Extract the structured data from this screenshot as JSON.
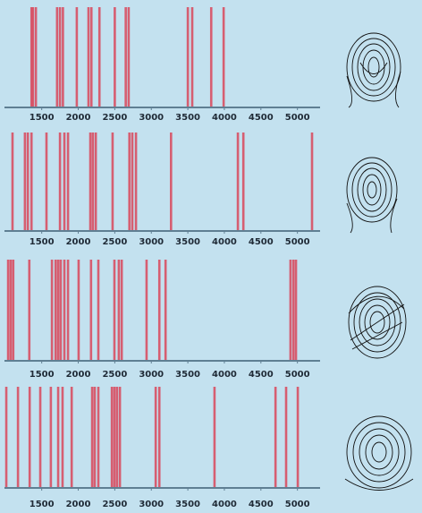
{
  "chart_data": [
    {
      "type": "barcode",
      "color": "#d9475b",
      "xlim": [
        990,
        5310
      ],
      "xticks": [
        1500,
        2000,
        2500,
        3000,
        3500,
        4000,
        4500,
        5000
      ],
      "x": [
        1360,
        1380,
        1420,
        1710,
        1750,
        1790,
        1980,
        2140,
        2180,
        2290,
        2500,
        2650,
        2690,
        3500,
        3560,
        3820,
        3990
      ]
    },
    {
      "type": "barcode",
      "color": "#d9475b",
      "xlim": [
        990,
        5310
      ],
      "xticks": [
        1500,
        2000,
        2500,
        3000,
        3500,
        4000,
        4500,
        5000
      ],
      "x": [
        1100,
        1270,
        1310,
        1360,
        1565,
        1750,
        1810,
        1860,
        2165,
        2200,
        2240,
        2470,
        2700,
        2740,
        2790,
        3270,
        4185,
        4260,
        5200
      ]
    },
    {
      "type": "barcode",
      "color": "#d9475b",
      "xlim": [
        990,
        5310
      ],
      "xticks": [
        1500,
        2000,
        2500,
        3000,
        3500,
        4000,
        4500,
        5000
      ],
      "x": [
        1040,
        1075,
        1110,
        1330,
        1640,
        1690,
        1725,
        1760,
        1810,
        1860,
        2005,
        2175,
        2275,
        2495,
        2555,
        2595,
        2935,
        3110,
        3195,
        4905,
        4945,
        4980
      ]
    },
    {
      "type": "barcode",
      "color": "#d9475b",
      "xlim": [
        990,
        5310
      ],
      "xticks": [
        1500,
        2000,
        2500,
        3000,
        3500,
        4000,
        4500,
        5000
      ],
      "x": [
        1015,
        1175,
        1335,
        1480,
        1625,
        1725,
        1785,
        1910,
        2190,
        2225,
        2275,
        2460,
        2495,
        2530,
        2570,
        3060,
        3110,
        3865,
        4700,
        4845,
        5005
      ]
    }
  ]
}
